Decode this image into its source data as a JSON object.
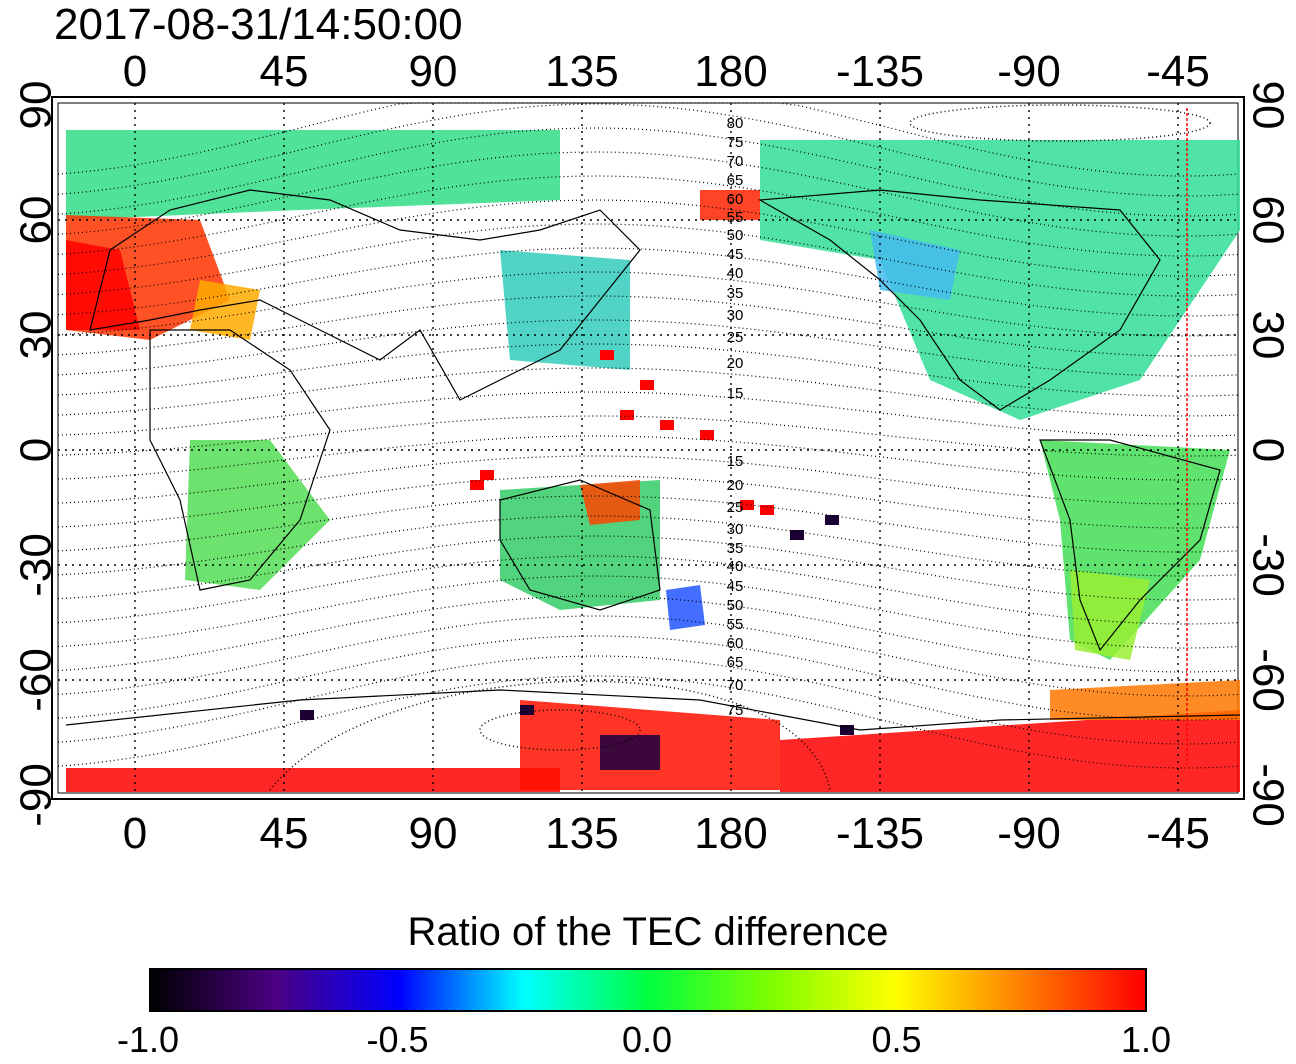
{
  "title": "2017-08-31/14:50:00",
  "colorbar": {
    "title": "Ratio of the TEC difference",
    "ticks": [
      "-1.0",
      "-0.5",
      "0.0",
      "0.5",
      "1.0"
    ],
    "colors": [
      "#000000",
      "#4b0082",
      "#0000ff",
      "#00ffff",
      "#00ff40",
      "#7fff00",
      "#ffff00",
      "#ff8000",
      "#ff0000"
    ]
  },
  "axes": {
    "lon_ticks": [
      "0",
      "45",
      "90",
      "135",
      "180",
      "-135",
      "-90",
      "-45"
    ],
    "lat_ticks_left": [
      "90",
      "60",
      "30",
      "0",
      "-30",
      "-60",
      "-90"
    ],
    "lat_ticks_right": [
      "90",
      "60",
      "30",
      "0",
      "-30",
      "-60",
      "-90"
    ]
  },
  "contour_labels": {
    "north": [
      "80",
      "75",
      "70",
      "65",
      "60",
      "55",
      "50",
      "45",
      "40",
      "35",
      "30",
      "25",
      "20",
      "15"
    ],
    "south": [
      "15",
      "20",
      "25",
      "30",
      "35",
      "40",
      "45",
      "50",
      "55",
      "60",
      "65",
      "70",
      "75"
    ]
  }
}
